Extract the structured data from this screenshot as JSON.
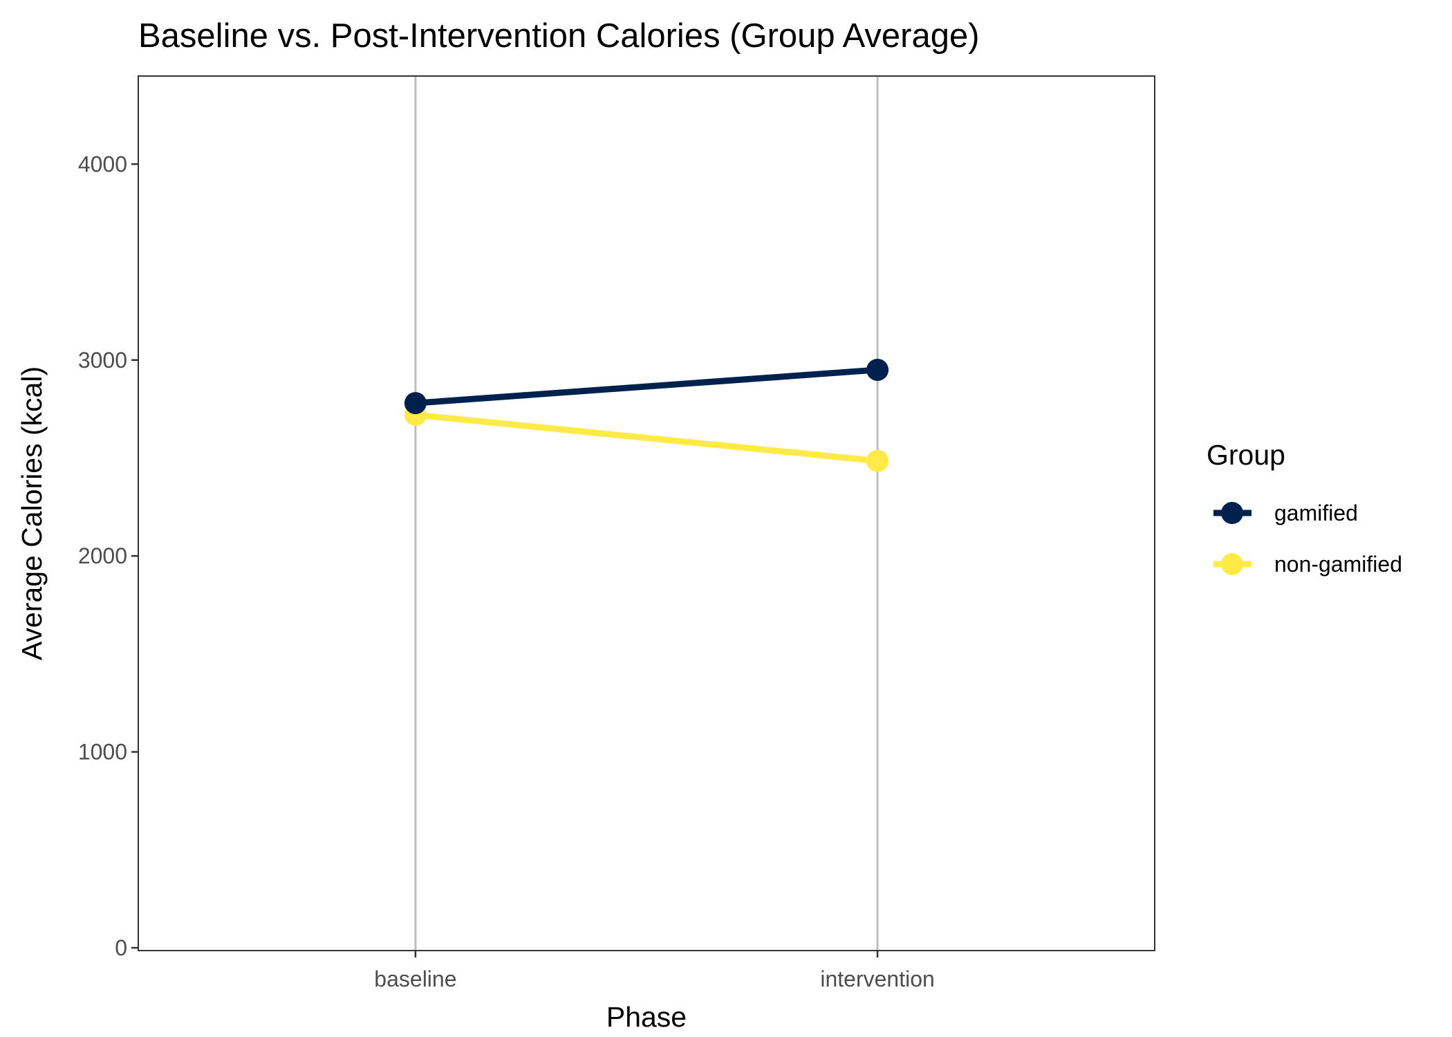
{
  "chart_data": {
    "type": "line",
    "title": "Baseline vs. Post-Intervention Calories (Group Average)",
    "xlabel": "Phase",
    "ylabel": "Average Calories (kcal)",
    "categories": [
      "baseline",
      "intervention"
    ],
    "ylim": [
      0,
      4400
    ],
    "yticks": [
      0,
      1000,
      2000,
      3000,
      4000
    ],
    "grid": {
      "vertical_major": true,
      "horizontal": false
    },
    "legend": {
      "title": "Group",
      "position": "right"
    },
    "series": [
      {
        "name": "gamified",
        "color": "#00204d",
        "values": [
          2780,
          2950
        ]
      },
      {
        "name": "non-gamified",
        "color": "#ffea46",
        "values": [
          2720,
          2485
        ]
      }
    ]
  }
}
